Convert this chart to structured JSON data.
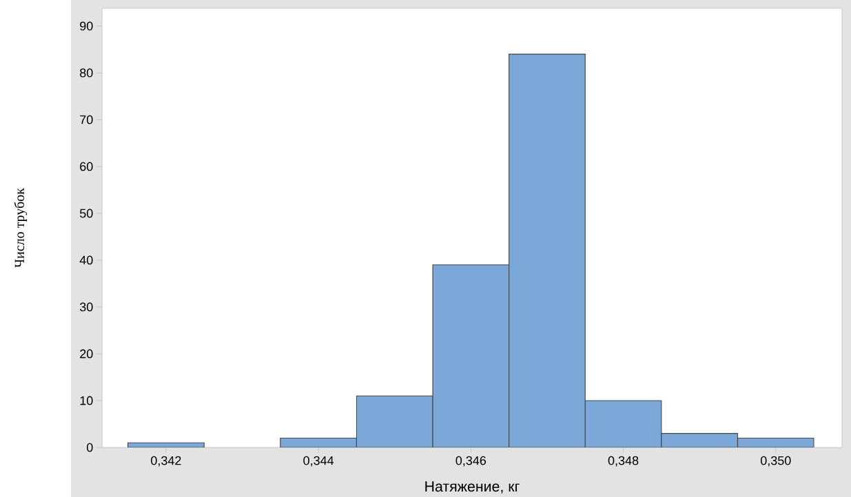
{
  "chart_data": {
    "type": "histogram",
    "xlabel": "Натяжение, кг",
    "ylabel": "Число трубок",
    "bins": [
      0.3415,
      0.3425,
      0.3435,
      0.3445,
      0.3455,
      0.3465,
      0.3475,
      0.3485,
      0.3495,
      0.3505
    ],
    "values": [
      1,
      0,
      2,
      11,
      39,
      84,
      10,
      3,
      2
    ],
    "color": "#7ba7d9",
    "xlim": [
      0.34116,
      0.35087
    ],
    "ylim": [
      0,
      93.8
    ],
    "xticks": [
      {
        "value": 0.342,
        "label": "0,342"
      },
      {
        "value": 0.344,
        "label": "0,344"
      },
      {
        "value": 0.346,
        "label": "0,346"
      },
      {
        "value": 0.348,
        "label": "0,348"
      },
      {
        "value": 0.35,
        "label": "0,350"
      }
    ],
    "yticks": [
      0,
      10,
      20,
      30,
      40,
      50,
      60,
      70,
      80,
      90
    ]
  }
}
